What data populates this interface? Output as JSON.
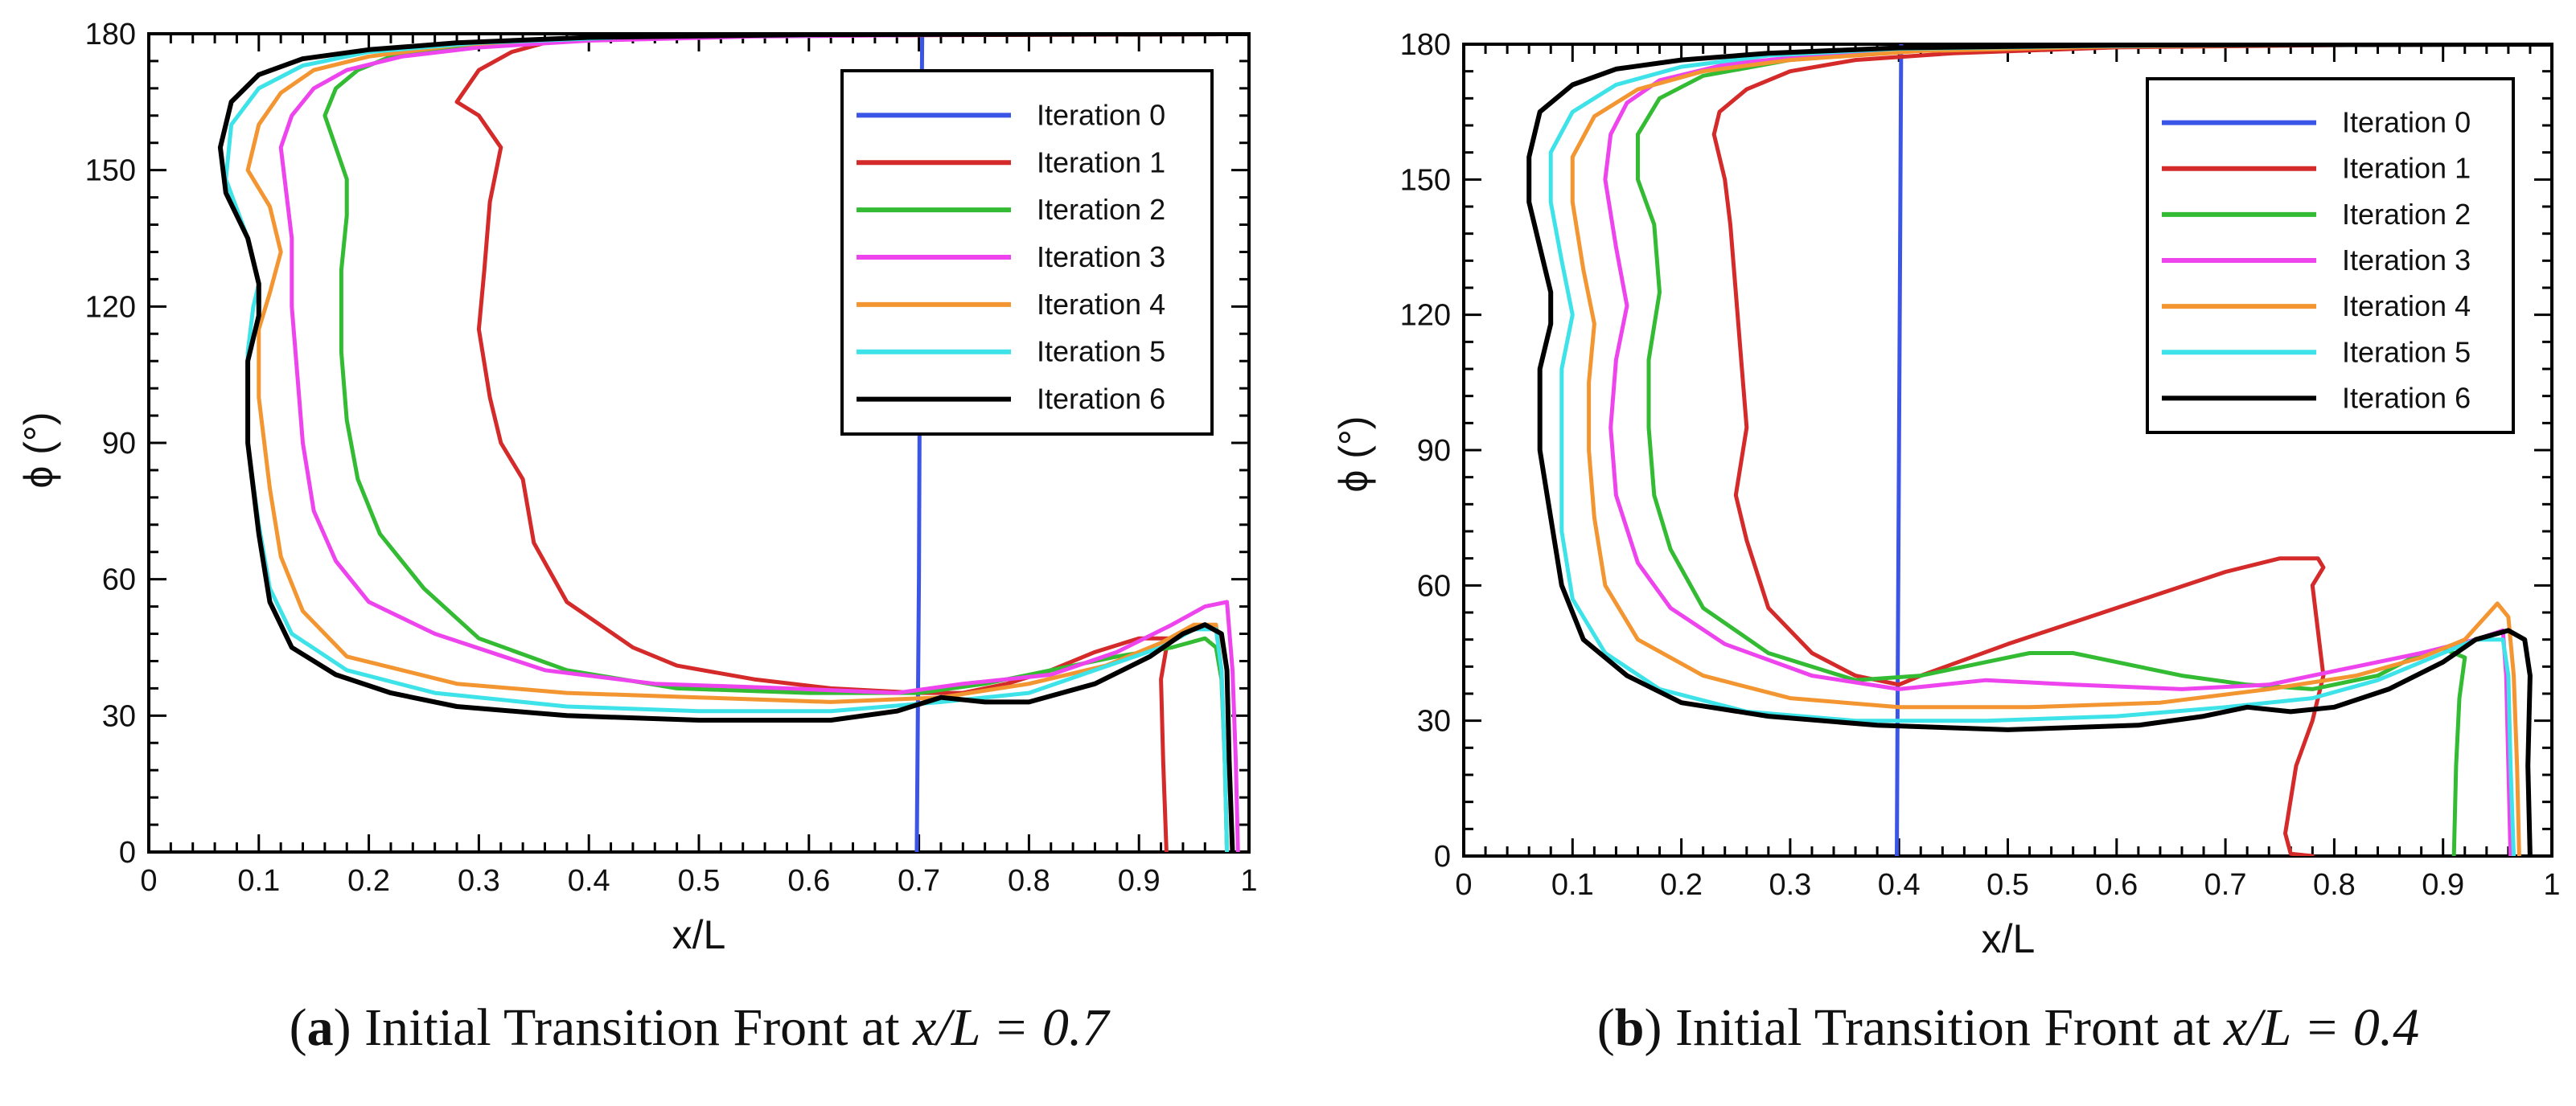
{
  "chart_data": [
    {
      "type": "line",
      "panel_letter": "a",
      "caption_text": "Initial Transition Front at",
      "caption_math": "x/L = 0.7",
      "xlabel": "x/L",
      "ylabel": "ϕ (°)",
      "xlim": [
        0,
        1
      ],
      "ylim": [
        0,
        180
      ],
      "xticks": [
        0,
        0.1,
        0.2,
        0.3,
        0.4,
        0.5,
        0.6,
        0.7,
        0.8,
        0.9,
        1
      ],
      "xtick_labels": [
        "0",
        "0.1",
        "0.2",
        "0.3",
        "0.4",
        "0.5",
        "0.6",
        "0.7",
        "0.8",
        "0.9",
        "1"
      ],
      "yticks": [
        0,
        30,
        60,
        90,
        120,
        150,
        180
      ],
      "ytick_labels": [
        "0",
        "30",
        "60",
        "90",
        "120",
        "150",
        "180"
      ],
      "legend_position": "top-right",
      "series": [
        {
          "name": "Iteration 0",
          "color": "#3b55e6",
          "x": [
            0.698,
            0.7,
            0.701,
            0.703
          ],
          "y": [
            0,
            60,
            120,
            180
          ]
        },
        {
          "name": "Iteration 1",
          "color": "#d42a2a",
          "x": [
            0.925,
            0.922,
            0.92,
            0.925,
            0.93,
            0.9,
            0.86,
            0.82,
            0.78,
            0.74,
            0.7,
            0.62,
            0.55,
            0.48,
            0.44,
            0.38,
            0.35,
            0.34,
            0.32,
            0.31,
            0.3,
            0.305,
            0.31,
            0.32,
            0.3,
            0.28,
            0.3,
            0.33,
            0.36,
            0.42,
            0.55,
            0.7,
            0.85,
            0.97,
            1.0
          ],
          "y": [
            0,
            20,
            38,
            45,
            47,
            47,
            44,
            40,
            37,
            35,
            35,
            36,
            38,
            41,
            45,
            55,
            68,
            82,
            90,
            100,
            115,
            128,
            143,
            155,
            162,
            165,
            172,
            176,
            178,
            179,
            179.5,
            179.7,
            179.8,
            179.9,
            180
          ]
        },
        {
          "name": "Iteration 2",
          "color": "#33bb33",
          "x": [
            0.98,
            0.978,
            0.975,
            0.97,
            0.96,
            0.93,
            0.88,
            0.82,
            0.76,
            0.7,
            0.6,
            0.48,
            0.38,
            0.3,
            0.25,
            0.21,
            0.19,
            0.18,
            0.175,
            0.175,
            0.18,
            0.18,
            0.17,
            0.16,
            0.17,
            0.19,
            0.22,
            0.28,
            0.35,
            0.45,
            0.6,
            0.8,
            1.0
          ],
          "y": [
            0,
            20,
            38,
            45,
            47,
            45,
            43,
            40,
            37,
            35,
            35,
            36,
            40,
            47,
            58,
            70,
            82,
            95,
            110,
            128,
            140,
            148,
            155,
            162,
            168,
            172,
            175,
            177,
            178.5,
            179.3,
            179.7,
            179.9,
            180
          ]
        },
        {
          "name": "Iteration 3",
          "color": "#ee44ee",
          "x": [
            0.99,
            0.988,
            0.985,
            0.98,
            0.96,
            0.93,
            0.88,
            0.82,
            0.74,
            0.68,
            0.58,
            0.46,
            0.36,
            0.26,
            0.2,
            0.17,
            0.15,
            0.14,
            0.135,
            0.13,
            0.13,
            0.12,
            0.13,
            0.15,
            0.18,
            0.23,
            0.3,
            0.4,
            0.55,
            0.75,
            1.0
          ],
          "y": [
            0,
            20,
            40,
            55,
            54,
            50,
            44,
            39,
            37,
            35,
            36,
            37,
            40,
            48,
            55,
            64,
            75,
            90,
            105,
            120,
            135,
            155,
            162,
            168,
            172,
            175,
            177,
            178.5,
            179.4,
            179.8,
            180
          ]
        },
        {
          "name": "Iteration 4",
          "color": "#f39530",
          "x": [
            0.98,
            0.978,
            0.975,
            0.97,
            0.95,
            0.92,
            0.87,
            0.8,
            0.72,
            0.62,
            0.5,
            0.38,
            0.28,
            0.18,
            0.14,
            0.12,
            0.11,
            0.1,
            0.1,
            0.11,
            0.12,
            0.11,
            0.09,
            0.1,
            0.12,
            0.15,
            0.2,
            0.28,
            0.38,
            0.5,
            0.7,
            1.0
          ],
          "y": [
            0,
            20,
            40,
            50,
            50,
            46,
            41,
            37,
            34,
            33,
            34,
            35,
            37,
            43,
            53,
            65,
            80,
            100,
            115,
            123,
            132,
            142,
            150,
            160,
            167,
            172,
            175,
            177.5,
            179,
            179.6,
            179.9,
            180
          ]
        },
        {
          "name": "Iteration 5",
          "color": "#3de3e8",
          "x": [
            0.98,
            0.978,
            0.975,
            0.97,
            0.95,
            0.92,
            0.86,
            0.8,
            0.72,
            0.62,
            0.5,
            0.38,
            0.26,
            0.18,
            0.13,
            0.11,
            0.1,
            0.09,
            0.09,
            0.095,
            0.1,
            0.09,
            0.07,
            0.075,
            0.1,
            0.14,
            0.2,
            0.3,
            0.45,
            0.65,
            1.0
          ],
          "y": [
            0,
            20,
            40,
            49,
            49,
            45,
            40,
            35,
            33,
            31,
            31,
            32,
            35,
            40,
            48,
            58,
            72,
            90,
            110,
            120,
            125,
            135,
            148,
            160,
            168,
            173,
            176,
            178,
            179.4,
            179.8,
            180
          ]
        },
        {
          "name": "Iteration 6",
          "color": "#000000",
          "x": [
            0.985,
            0.982,
            0.98,
            0.975,
            0.96,
            0.94,
            0.91,
            0.86,
            0.8,
            0.76,
            0.72,
            0.68,
            0.62,
            0.5,
            0.38,
            0.28,
            0.22,
            0.17,
            0.13,
            0.11,
            0.1,
            0.09,
            0.09,
            0.1,
            0.1,
            0.09,
            0.07,
            0.065,
            0.075,
            0.1,
            0.14,
            0.2,
            0.28,
            0.4,
            0.6,
            1.0
          ],
          "y": [
            0,
            20,
            40,
            48,
            50,
            48,
            43,
            37,
            33,
            33,
            34,
            31,
            29,
            29,
            30,
            32,
            35,
            39,
            45,
            55,
            70,
            90,
            108,
            118,
            125,
            135,
            145,
            155,
            165,
            171,
            174.5,
            176.5,
            178,
            179.2,
            179.8,
            180
          ]
        }
      ]
    },
    {
      "type": "line",
      "panel_letter": "b",
      "caption_text": "Initial Transition Front at",
      "caption_math": "x/L = 0.4",
      "xlabel": "x/L",
      "ylabel": "ϕ (°)",
      "xlim": [
        0,
        1
      ],
      "ylim": [
        0,
        180
      ],
      "xticks": [
        0,
        0.1,
        0.2,
        0.3,
        0.4,
        0.5,
        0.6,
        0.7,
        0.8,
        0.9,
        1
      ],
      "xtick_labels": [
        "0",
        "0.1",
        "0.2",
        "0.3",
        "0.4",
        "0.5",
        "0.6",
        "0.7",
        "0.8",
        "0.9",
        "1"
      ],
      "yticks": [
        0,
        30,
        60,
        90,
        120,
        150,
        180
      ],
      "ytick_labels": [
        "0",
        "30",
        "60",
        "90",
        "120",
        "150",
        "180"
      ],
      "legend_position": "top-right",
      "series": [
        {
          "name": "Iteration 0",
          "color": "#3b55e6",
          "x": [
            0.398,
            0.399,
            0.4,
            0.401,
            0.402
          ],
          "y": [
            0,
            45,
            90,
            135,
            180
          ]
        },
        {
          "name": "Iteration 1",
          "color": "#d42a2a",
          "x": [
            0.78,
            0.76,
            0.755,
            0.765,
            0.78,
            0.79,
            0.785,
            0.78,
            0.79,
            0.785,
            0.75,
            0.7,
            0.6,
            0.5,
            0.42,
            0.4,
            0.36,
            0.32,
            0.28,
            0.26,
            0.25,
            0.26,
            0.255,
            0.25,
            0.245,
            0.24,
            0.23,
            0.235,
            0.26,
            0.3,
            0.36,
            0.45,
            0.6,
            0.8,
            1.0
          ],
          "y": [
            0,
            0.5,
            5,
            20,
            30,
            40,
            50,
            60,
            64,
            66,
            66,
            63,
            55,
            47,
            40,
            38,
            40,
            45,
            55,
            70,
            80,
            95,
            110,
            125,
            140,
            150,
            160,
            165,
            170,
            174,
            176.5,
            178,
            179.3,
            179.8,
            180
          ]
        },
        {
          "name": "Iteration 2",
          "color": "#33bb33",
          "x": [
            0.91,
            0.912,
            0.915,
            0.92,
            0.9,
            0.88,
            0.84,
            0.78,
            0.72,
            0.66,
            0.6,
            0.56,
            0.52,
            0.48,
            0.42,
            0.36,
            0.28,
            0.22,
            0.19,
            0.175,
            0.17,
            0.17,
            0.18,
            0.175,
            0.16,
            0.16,
            0.18,
            0.22,
            0.3,
            0.4,
            0.55,
            0.75,
            1.0
          ],
          "y": [
            0,
            20,
            35,
            44,
            46,
            45,
            40,
            37,
            38,
            40,
            43,
            45,
            45,
            43,
            40,
            39,
            45,
            55,
            68,
            80,
            95,
            110,
            125,
            140,
            150,
            160,
            168,
            173,
            176.5,
            178.5,
            179.5,
            179.9,
            180
          ]
        },
        {
          "name": "Iteration 3",
          "color": "#ee44ee",
          "x": [
            0.962,
            0.96,
            0.958,
            0.955,
            0.93,
            0.88,
            0.82,
            0.74,
            0.66,
            0.56,
            0.48,
            0.4,
            0.32,
            0.24,
            0.19,
            0.16,
            0.14,
            0.135,
            0.14,
            0.15,
            0.14,
            0.13,
            0.135,
            0.15,
            0.18,
            0.24,
            0.32,
            0.45,
            0.6,
            0.8,
            1.0
          ],
          "y": [
            0,
            20,
            40,
            50,
            48,
            45,
            42,
            38,
            37,
            38,
            39,
            37,
            40,
            47,
            55,
            65,
            80,
            95,
            110,
            122,
            135,
            150,
            160,
            167,
            172,
            175.5,
            177.5,
            179,
            179.6,
            179.9,
            180
          ]
        },
        {
          "name": "Iteration 4",
          "color": "#f39530",
          "x": [
            0.97,
            0.968,
            0.965,
            0.96,
            0.95,
            0.92,
            0.88,
            0.82,
            0.74,
            0.64,
            0.52,
            0.4,
            0.3,
            0.22,
            0.16,
            0.13,
            0.12,
            0.115,
            0.115,
            0.12,
            0.11,
            0.1,
            0.1,
            0.12,
            0.16,
            0.22,
            0.3,
            0.42,
            0.6,
            0.8,
            1.0
          ],
          "y": [
            0,
            20,
            40,
            53,
            56,
            48,
            44,
            40,
            37,
            34,
            33,
            33,
            35,
            40,
            48,
            60,
            75,
            90,
            105,
            118,
            130,
            145,
            155,
            164,
            170,
            174,
            176.5,
            178.5,
            179.5,
            179.9,
            180
          ]
        },
        {
          "name": "Iteration 5",
          "color": "#3de3e8",
          "x": [
            0.965,
            0.962,
            0.96,
            0.955,
            0.93,
            0.89,
            0.84,
            0.78,
            0.7,
            0.6,
            0.48,
            0.36,
            0.26,
            0.18,
            0.13,
            0.1,
            0.09,
            0.09,
            0.09,
            0.1,
            0.09,
            0.08,
            0.08,
            0.1,
            0.14,
            0.2,
            0.28,
            0.4,
            0.58,
            0.8,
            1.0
          ],
          "y": [
            0,
            20,
            40,
            48,
            48,
            44,
            39,
            35,
            33,
            31,
            30,
            30,
            32,
            37,
            45,
            57,
            72,
            90,
            108,
            120,
            132,
            145,
            156,
            165,
            171,
            175,
            177.5,
            179,
            179.6,
            179.9,
            180
          ]
        },
        {
          "name": "Iteration 6",
          "color": "#000000",
          "x": [
            0.98,
            0.978,
            0.98,
            0.975,
            0.96,
            0.93,
            0.9,
            0.85,
            0.8,
            0.76,
            0.72,
            0.68,
            0.62,
            0.5,
            0.38,
            0.28,
            0.2,
            0.15,
            0.11,
            0.09,
            0.08,
            0.07,
            0.07,
            0.08,
            0.08,
            0.07,
            0.06,
            0.06,
            0.07,
            0.1,
            0.14,
            0.2,
            0.28,
            0.4,
            0.6,
            1.0
          ],
          "y": [
            0,
            20,
            40,
            48,
            50,
            48,
            43,
            37,
            33,
            32,
            33,
            31,
            29,
            28,
            29,
            31,
            34,
            40,
            48,
            60,
            75,
            90,
            108,
            118,
            125,
            135,
            145,
            155,
            165,
            171,
            174.5,
            176.5,
            178,
            179.2,
            179.8,
            180
          ]
        }
      ]
    }
  ]
}
